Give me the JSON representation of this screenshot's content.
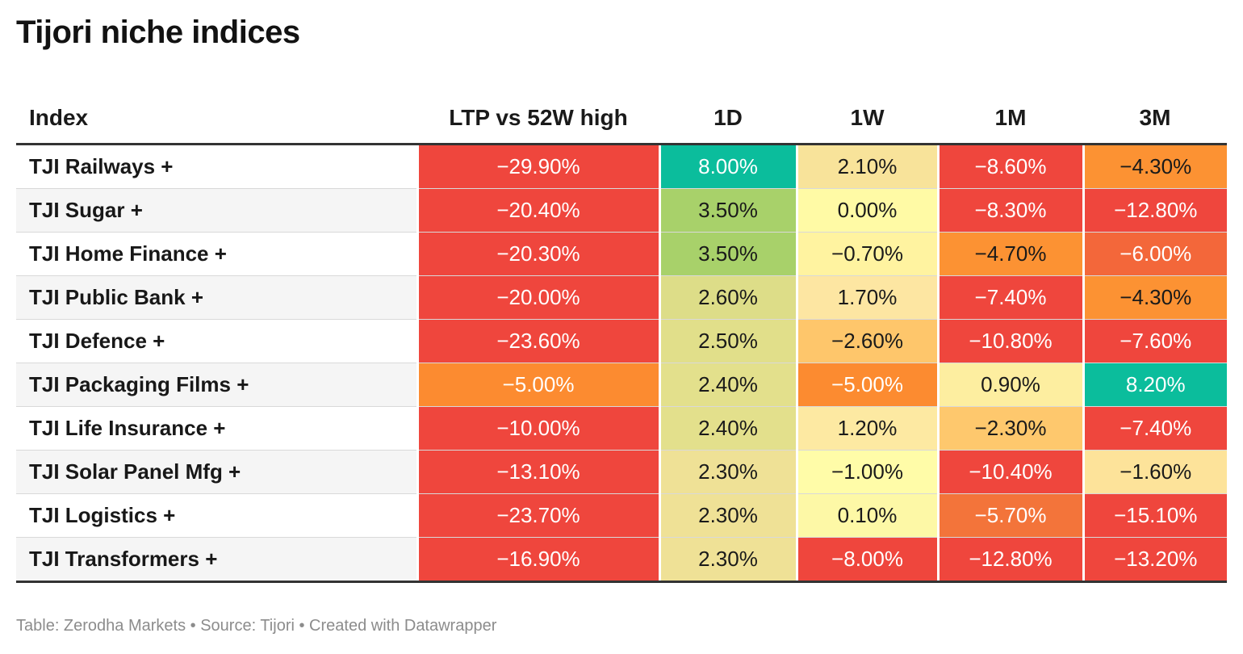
{
  "title": "Tijori niche indices",
  "footer": "Table: Zerodha Markets • Source: Tijori • Created with Datawrapper",
  "chart_data": {
    "type": "table",
    "columns": [
      "Index",
      "LTP vs 52W high",
      "1D",
      "1W",
      "1M",
      "3M"
    ],
    "rows": [
      {
        "name": "TJI Railways +",
        "values": [
          "−29.90%",
          "8.00%",
          "2.10%",
          "−8.60%",
          "−4.30%"
        ],
        "colors": [
          "#ef463d",
          "#0bbd9c",
          "#f8e39a",
          "#ef463d",
          "#fc9233"
        ]
      },
      {
        "name": "TJI Sugar +",
        "values": [
          "−20.40%",
          "3.50%",
          "0.00%",
          "−8.30%",
          "−12.80%"
        ],
        "colors": [
          "#ef463d",
          "#a8d16a",
          "#fffaa5",
          "#ef463d",
          "#ef463d"
        ]
      },
      {
        "name": "TJI Home Finance +",
        "values": [
          "−20.30%",
          "3.50%",
          "−0.70%",
          "−4.70%",
          "−6.00%"
        ],
        "colors": [
          "#ef463d",
          "#a8d16a",
          "#fff3a0",
          "#fc9233",
          "#f3673a"
        ]
      },
      {
        "name": "TJI Public Bank +",
        "values": [
          "−20.00%",
          "2.60%",
          "1.70%",
          "−7.40%",
          "−4.30%"
        ],
        "colors": [
          "#ef463d",
          "#dddd88",
          "#fde6a2",
          "#ef463d",
          "#fc9233"
        ]
      },
      {
        "name": "TJI Defence +",
        "values": [
          "−23.60%",
          "2.50%",
          "−2.60%",
          "−10.80%",
          "−7.60%"
        ],
        "colors": [
          "#ef463d",
          "#e1df8a",
          "#fec66b",
          "#ef463d",
          "#ef463d"
        ]
      },
      {
        "name": "TJI Packaging Films +",
        "values": [
          "−5.00%",
          "2.40%",
          "−5.00%",
          "0.90%",
          "8.20%"
        ],
        "colors": [
          "#fc8b30",
          "#e3e08c",
          "#fc8b30",
          "#fdeea0",
          "#0bbd9c"
        ]
      },
      {
        "name": "TJI Life Insurance +",
        "values": [
          "−10.00%",
          "2.40%",
          "1.20%",
          "−2.30%",
          "−7.40%"
        ],
        "colors": [
          "#ef463d",
          "#e3e08c",
          "#fde9a2",
          "#fec86d",
          "#ef463d"
        ]
      },
      {
        "name": "TJI Solar Panel Mfg +",
        "values": [
          "−13.10%",
          "2.30%",
          "−1.00%",
          "−10.40%",
          "−1.60%"
        ],
        "colors": [
          "#ef463d",
          "#efe196",
          "#fffca8",
          "#ef463d",
          "#fde39a"
        ]
      },
      {
        "name": "TJI Logistics +",
        "values": [
          "−23.70%",
          "2.30%",
          "0.10%",
          "−5.70%",
          "−15.10%"
        ],
        "colors": [
          "#ef463d",
          "#efe196",
          "#fdf8a6",
          "#f3743a",
          "#ef463d"
        ]
      },
      {
        "name": "TJI Transformers +",
        "values": [
          "−16.90%",
          "2.30%",
          "−8.00%",
          "−12.80%",
          "−13.20%"
        ],
        "colors": [
          "#ef463d",
          "#efe196",
          "#ef463d",
          "#ef463d",
          "#ef463d"
        ]
      }
    ]
  }
}
